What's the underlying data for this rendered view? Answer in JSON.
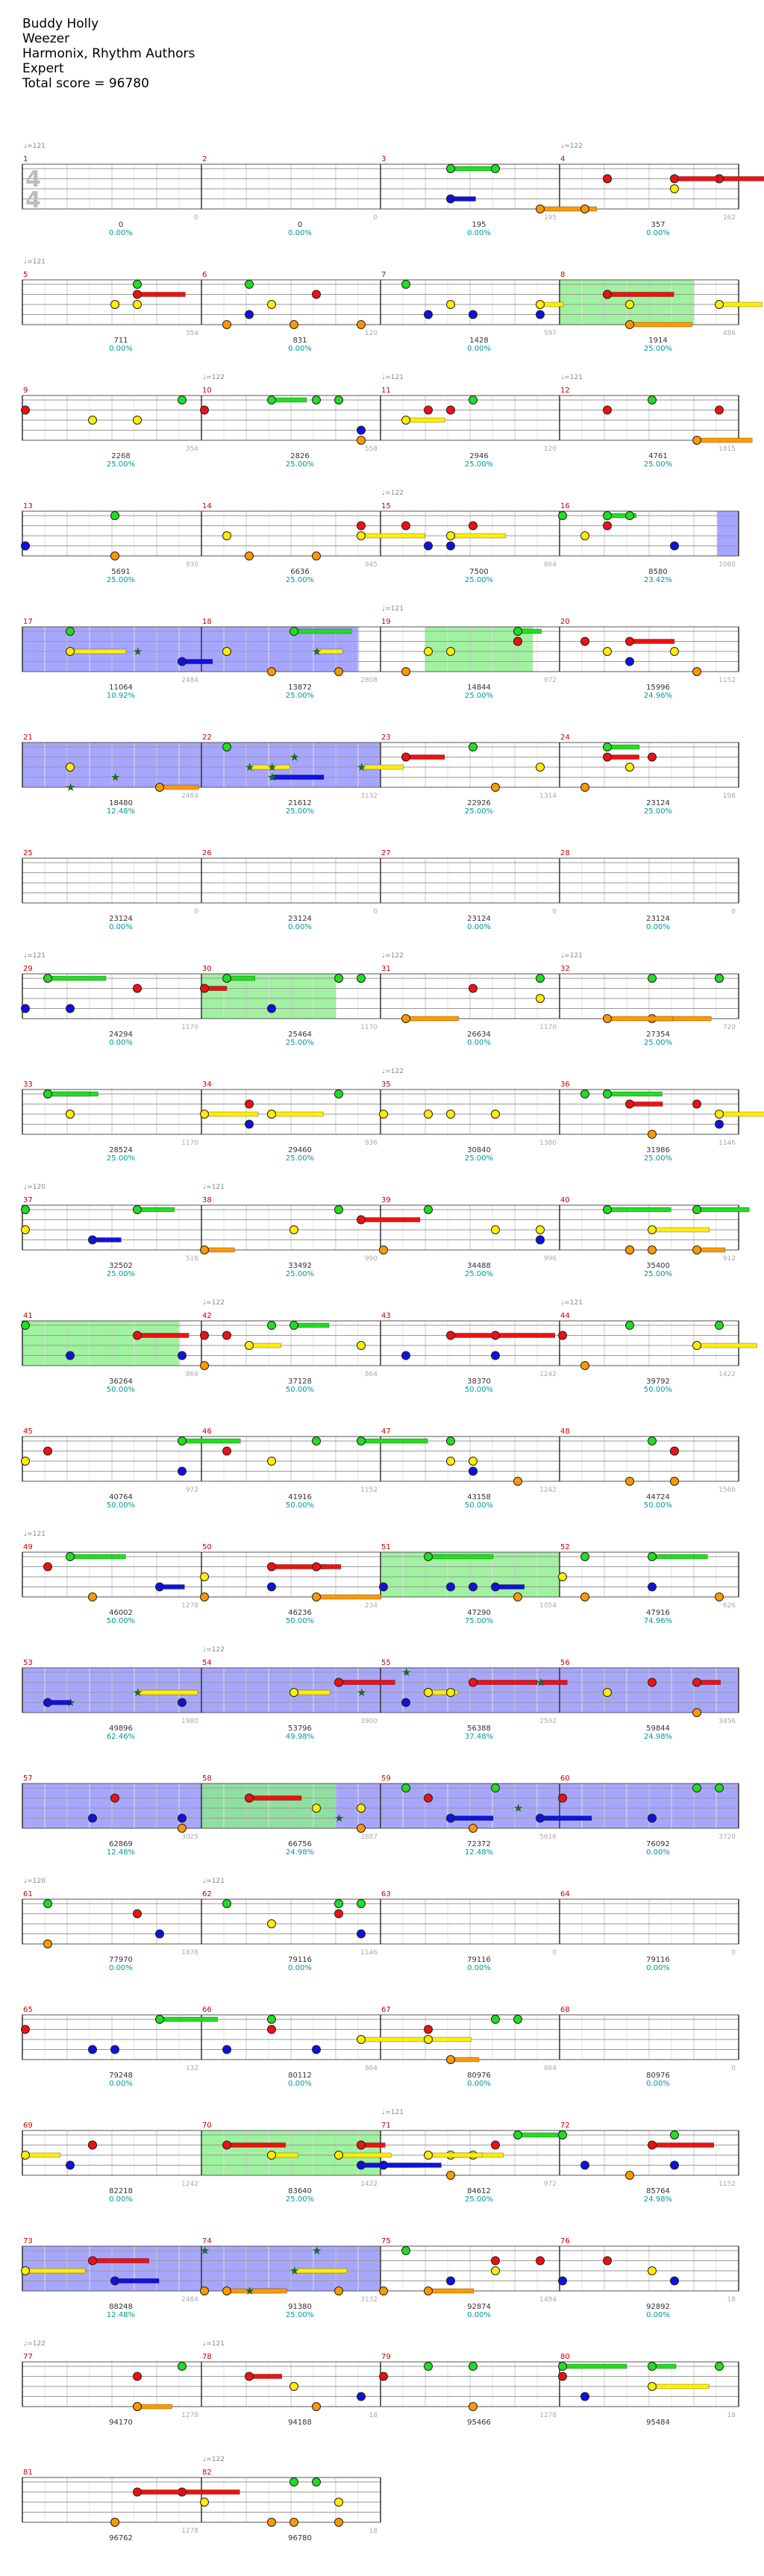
{
  "header": {
    "song": "Buddy Holly",
    "artist": "Weezer",
    "charter": "Harmonix, Rhythm Authors",
    "difficulty": "Expert",
    "total_score": "Total score = 96780"
  },
  "colors": {
    "green": "#22dd22",
    "red": "#ee1111",
    "yellow": "#ffee00",
    "blue": "#1111dd",
    "orange": "#ff9900",
    "star_power": "#8888ff",
    "solo": "#88ee88",
    "measure_number": "#cc0000",
    "score_text": "#333333",
    "percent_text": "#009999",
    "tempo_text": "#888888"
  },
  "rows": [
    {
      "measures": [
        1,
        2,
        3,
        4
      ],
      "tempos": [
        {
          "m": 0,
          "label": "♩=121"
        },
        {
          "m": 3,
          "label": "♩=122"
        }
      ],
      "time_signature": [
        "4",
        "4"
      ],
      "scores": [
        {
          "left": "0",
          "right": "0",
          "cum": "0",
          "pct": "0.00%"
        },
        {
          "left": "0",
          "right": "0",
          "cum": "0",
          "pct": "0.00%"
        },
        {
          "left": "195",
          "right": "195",
          "cum": "195",
          "pct": "0.00%"
        },
        {
          "left": "162",
          "right": "357",
          "cum": "357",
          "pct": "0.00%"
        }
      ],
      "sp": [],
      "solo": []
    },
    {
      "measures": [
        5,
        6,
        7,
        8
      ],
      "tempos": [
        {
          "m": 0,
          "label": "♩=121"
        }
      ],
      "scores": [
        {
          "left": "354",
          "right": "711",
          "cum": "711",
          "pct": "0.00%"
        },
        {
          "left": "120",
          "right": "831",
          "cum": "831",
          "pct": "0.00%"
        },
        {
          "left": "597",
          "right": "1428",
          "cum": "1428",
          "pct": "0.00%"
        },
        {
          "left": "486",
          "right": "1914",
          "cum": "1914",
          "pct": "25.00%"
        }
      ],
      "sp": [],
      "solo": [
        [
          3.0,
          3.75
        ]
      ]
    },
    {
      "measures": [
        9,
        10,
        11,
        12
      ],
      "tempos": [
        {
          "m": 1,
          "label": "♩=122"
        },
        {
          "m": 2,
          "label": "♩=121"
        },
        {
          "m": 3,
          "label": "♩=121"
        }
      ],
      "scores": [
        {
          "left": "354",
          "right": "2268",
          "cum": "2268",
          "pct": "25.00%"
        },
        {
          "left": "558",
          "right": "2826",
          "cum": "2826",
          "pct": "25.00%"
        },
        {
          "left": "120",
          "right": "2946",
          "cum": "2946",
          "pct": "25.00%"
        },
        {
          "left": "1815",
          "right": "4761",
          "cum": "4761",
          "pct": "25.00%"
        }
      ],
      "sp": [],
      "solo": []
    },
    {
      "measures": [
        13,
        14,
        15,
        16
      ],
      "tempos": [
        {
          "m": 2,
          "label": "♩=122"
        }
      ],
      "scores": [
        {
          "left": "930",
          "right": "5691",
          "cum": "5691",
          "pct": "25.00%"
        },
        {
          "left": "945",
          "right": "6636",
          "cum": "6636",
          "pct": "25.00%"
        },
        {
          "left": "864",
          "right": "7500",
          "cum": "7500",
          "pct": "25.00%"
        },
        {
          "left": "1080",
          "right": "8580",
          "cum": "8580",
          "pct": "23.42%"
        }
      ],
      "sp": [
        [
          3.88,
          4.0
        ]
      ],
      "solo": []
    },
    {
      "measures": [
        17,
        18,
        19,
        20
      ],
      "tempos": [
        {
          "m": 2,
          "label": "♩=121"
        }
      ],
      "scores": [
        {
          "left": "2484",
          "right": "11064",
          "cum": "11064",
          "pct": "10.92%"
        },
        {
          "left": "2808",
          "right": "13872",
          "cum": "13872",
          "pct": "25.00%"
        },
        {
          "left": "972",
          "right": "14844",
          "cum": "14844",
          "pct": "25.00%"
        },
        {
          "left": "1152",
          "right": "15996",
          "cum": "15996",
          "pct": "24.96%"
        }
      ],
      "sp": [
        [
          0.0,
          1.88
        ]
      ],
      "solo": [
        [
          2.25,
          2.85
        ]
      ]
    },
    {
      "measures": [
        21,
        22,
        23,
        24
      ],
      "tempos": [],
      "scores": [
        {
          "left": "2484",
          "right": "18480",
          "cum": "18480",
          "pct": "12.48%"
        },
        {
          "left": "3132",
          "right": "21612",
          "cum": "21612",
          "pct": "25.00%"
        },
        {
          "left": "1314",
          "right": "22926",
          "cum": "22926",
          "pct": "25.00%"
        },
        {
          "left": "198",
          "right": "23124",
          "cum": "23124",
          "pct": "25.00%"
        }
      ],
      "sp": [
        [
          0.0,
          2.0
        ]
      ],
      "solo": []
    },
    {
      "measures": [
        25,
        26,
        27,
        28
      ],
      "tempos": [],
      "scores": [
        {
          "left": "0",
          "right": "23124",
          "cum": "23124",
          "pct": "0.00%"
        },
        {
          "left": "0",
          "right": "23124",
          "cum": "23124",
          "pct": "0.00%"
        },
        {
          "left": "0",
          "right": "23124",
          "cum": "23124",
          "pct": "0.00%"
        },
        {
          "left": "0",
          "right": "23124",
          "cum": "23124",
          "pct": "0.00%"
        }
      ],
      "sp": [],
      "solo": []
    },
    {
      "measures": [
        29,
        30,
        31,
        32
      ],
      "tempos": [
        {
          "m": 0,
          "label": "♩=121"
        },
        {
          "m": 2,
          "label": "♩=122"
        },
        {
          "m": 3,
          "label": "♩=121"
        }
      ],
      "scores": [
        {
          "left": "1170",
          "right": "24294",
          "cum": "24294",
          "pct": "0.00%"
        },
        {
          "left": "1170",
          "right": "25464",
          "cum": "25464",
          "pct": "25.00%"
        },
        {
          "left": "1170",
          "right": "26634",
          "cum": "26634",
          "pct": "0.00%"
        },
        {
          "left": "720",
          "right": "27354",
          "cum": "27354",
          "pct": "25.00%"
        }
      ],
      "sp": [],
      "solo": [
        [
          1.0,
          1.75
        ]
      ]
    },
    {
      "measures": [
        33,
        34,
        35,
        36
      ],
      "tempos": [
        {
          "m": 2,
          "label": "♩=122"
        }
      ],
      "scores": [
        {
          "left": "1170",
          "right": "28524",
          "cum": "28524",
          "pct": "25.00%"
        },
        {
          "left": "936",
          "right": "29460",
          "cum": "29460",
          "pct": "25.00%"
        },
        {
          "left": "1380",
          "right": "30840",
          "cum": "30840",
          "pct": "25.00%"
        },
        {
          "left": "1146",
          "right": "31986",
          "cum": "31986",
          "pct": "25.00%"
        }
      ],
      "sp": [],
      "solo": []
    },
    {
      "measures": [
        37,
        38,
        39,
        40
      ],
      "tempos": [
        {
          "m": 0,
          "label": "♩=120"
        },
        {
          "m": 1,
          "label": "♩=121"
        }
      ],
      "scores": [
        {
          "left": "516",
          "right": "32502",
          "cum": "32502",
          "pct": "25.00%"
        },
        {
          "left": "990",
          "right": "33492",
          "cum": "33492",
          "pct": "25.00%"
        },
        {
          "left": "996",
          "right": "34488",
          "cum": "34488",
          "pct": "25.00%"
        },
        {
          "left": "912",
          "right": "35400",
          "cum": "35400",
          "pct": "25.00%"
        }
      ],
      "sp": [],
      "solo": []
    },
    {
      "measures": [
        41,
        42,
        43,
        44
      ],
      "tempos": [
        {
          "m": 1,
          "label": "♩=122"
        },
        {
          "m": 3,
          "label": "♩=121"
        }
      ],
      "scores": [
        {
          "left": "864",
          "right": "36264",
          "cum": "36264",
          "pct": "50.00%"
        },
        {
          "left": "864",
          "right": "37128",
          "cum": "37128",
          "pct": "50.00%"
        },
        {
          "left": "1242",
          "right": "38370",
          "cum": "38370",
          "pct": "50.00%"
        },
        {
          "left": "1422",
          "right": "39792",
          "cum": "39792",
          "pct": "50.00%"
        }
      ],
      "sp": [],
      "solo": [
        [
          0.0,
          0.88
        ]
      ]
    },
    {
      "measures": [
        45,
        46,
        47,
        48
      ],
      "tempos": [],
      "scores": [
        {
          "left": "972",
          "right": "40764",
          "cum": "40764",
          "pct": "50.00%"
        },
        {
          "left": "1152",
          "right": "41916",
          "cum": "41916",
          "pct": "50.00%"
        },
        {
          "left": "1242",
          "right": "43158",
          "cum": "43158",
          "pct": "50.00%"
        },
        {
          "left": "1566",
          "right": "44724",
          "cum": "44724",
          "pct": "50.00%"
        }
      ],
      "sp": [],
      "solo": []
    },
    {
      "measures": [
        49,
        50,
        51,
        52
      ],
      "tempos": [
        {
          "m": 0,
          "label": "♩=121"
        }
      ],
      "scores": [
        {
          "left": "1278",
          "right": "46002",
          "cum": "46002",
          "pct": "50.00%"
        },
        {
          "left": "234",
          "right": "46236",
          "cum": "46236",
          "pct": "50.00%"
        },
        {
          "left": "1054",
          "right": "47290",
          "cum": "47290",
          "pct": "75.00%"
        },
        {
          "left": "626",
          "right": "47916",
          "cum": "47916",
          "pct": "74.96%"
        }
      ],
      "sp": [],
      "solo": [
        [
          2.0,
          3.0
        ]
      ]
    },
    {
      "measures": [
        53,
        54,
        55,
        56
      ],
      "tempos": [
        {
          "m": 1,
          "label": "♩=122"
        }
      ],
      "scores": [
        {
          "left": "1980",
          "right": "49896",
          "cum": "49896",
          "pct": "62.46%"
        },
        {
          "left": "3900",
          "right": "53796",
          "cum": "53796",
          "pct": "49.98%"
        },
        {
          "left": "2592",
          "right": "56388",
          "cum": "56388",
          "pct": "37.48%"
        },
        {
          "left": "3456",
          "right": "59844",
          "cum": "59844",
          "pct": "24.98%"
        }
      ],
      "sp": [
        [
          0.0,
          4.0
        ]
      ],
      "solo": []
    },
    {
      "measures": [
        57,
        58,
        59,
        60
      ],
      "tempos": [],
      "scores": [
        {
          "left": "3025",
          "right": "62869",
          "cum": "62869",
          "pct": "12.48%"
        },
        {
          "left": "3887",
          "right": "66756",
          "cum": "66756",
          "pct": "24.98%"
        },
        {
          "left": "5616",
          "right": "72372",
          "cum": "72372",
          "pct": "12.48%"
        },
        {
          "left": "3720",
          "right": "76092",
          "cum": "76092",
          "pct": "0.00%"
        }
      ],
      "sp": [
        [
          0.0,
          4.0
        ]
      ],
      "solo": [
        [
          1.0,
          1.75
        ]
      ]
    },
    {
      "measures": [
        61,
        62,
        63,
        64
      ],
      "tempos": [
        {
          "m": 0,
          "label": "♩=120"
        },
        {
          "m": 1,
          "label": "♩=121"
        }
      ],
      "scores": [
        {
          "left": "1878",
          "right": "77970",
          "cum": "77970",
          "pct": "0.00%"
        },
        {
          "left": "1146",
          "right": "79116",
          "cum": "79116",
          "pct": "0.00%"
        },
        {
          "left": "0",
          "right": "79116",
          "cum": "79116",
          "pct": "0.00%"
        },
        {
          "left": "0",
          "right": "79116",
          "cum": "79116",
          "pct": "0.00%"
        }
      ],
      "sp": [],
      "solo": []
    },
    {
      "measures": [
        65,
        66,
        67,
        68
      ],
      "tempos": [],
      "scores": [
        {
          "left": "132",
          "right": "79248",
          "cum": "79248",
          "pct": "0.00%"
        },
        {
          "left": "864",
          "right": "80112",
          "cum": "80112",
          "pct": "0.00%"
        },
        {
          "left": "864",
          "right": "80976",
          "cum": "80976",
          "pct": "0.00%"
        },
        {
          "left": "0",
          "right": "80976",
          "cum": "80976",
          "pct": "0.00%"
        }
      ],
      "sp": [],
      "solo": []
    },
    {
      "measures": [
        69,
        70,
        71,
        72
      ],
      "tempos": [
        {
          "m": 2,
          "label": "♩=121"
        }
      ],
      "scores": [
        {
          "left": "1242",
          "right": "82218",
          "cum": "82218",
          "pct": "0.00%"
        },
        {
          "left": "1422",
          "right": "83640",
          "cum": "83640",
          "pct": "25.00%"
        },
        {
          "left": "972",
          "right": "84612",
          "cum": "84612",
          "pct": "25.00%"
        },
        {
          "left": "1152",
          "right": "85764",
          "cum": "85764",
          "pct": "24.98%"
        }
      ],
      "sp": [],
      "solo": [
        [
          1.0,
          2.0
        ]
      ]
    },
    {
      "measures": [
        73,
        74,
        75,
        76
      ],
      "tempos": [],
      "scores": [
        {
          "left": "2484",
          "right": "88248",
          "cum": "88248",
          "pct": "12.48%"
        },
        {
          "left": "3132",
          "right": "91380",
          "cum": "91380",
          "pct": "25.00%"
        },
        {
          "left": "1494",
          "right": "92874",
          "cum": "92874",
          "pct": "0.00%"
        },
        {
          "left": "18",
          "right": "92892",
          "cum": "92892",
          "pct": "0.00%"
        }
      ],
      "sp": [
        [
          0.0,
          2.0
        ]
      ],
      "solo": []
    },
    {
      "measures": [
        77,
        78,
        79,
        80
      ],
      "tempos": [
        {
          "m": 0,
          "label": "♩=122"
        },
        {
          "m": 1,
          "label": "♩=121"
        }
      ],
      "scores": [
        {
          "left": "1278",
          "right": "94170",
          "cum": "94170",
          "pct": ""
        },
        {
          "left": "18",
          "right": "94188",
          "cum": "94188",
          "pct": ""
        },
        {
          "left": "1278",
          "right": "95466",
          "cum": "95466",
          "pct": ""
        },
        {
          "left": "18",
          "right": "95484",
          "cum": "95484",
          "pct": ""
        }
      ],
      "sp": [],
      "solo": []
    },
    {
      "measures": [
        81,
        82
      ],
      "tempos": [
        {
          "m": 1,
          "label": "♩=122"
        }
      ],
      "scores": [
        {
          "left": "1278",
          "right": "96762",
          "cum": "96762",
          "pct": ""
        },
        {
          "left": "18",
          "right": "96780",
          "cum": "96780",
          "pct": ""
        }
      ],
      "sp": [],
      "solo": []
    }
  ]
}
